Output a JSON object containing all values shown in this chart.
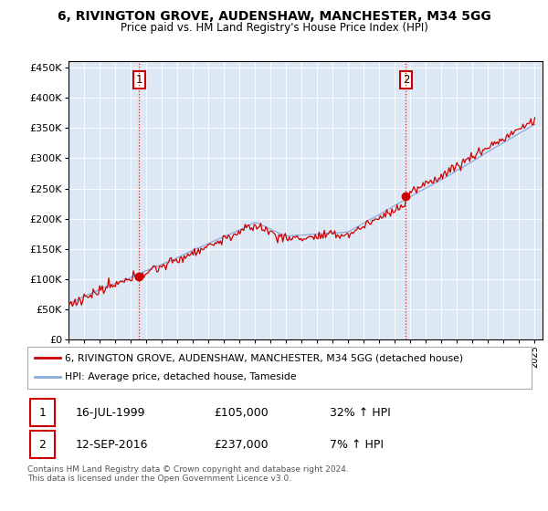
{
  "title": "6, RIVINGTON GROVE, AUDENSHAW, MANCHESTER, M34 5GG",
  "subtitle": "Price paid vs. HM Land Registry's House Price Index (HPI)",
  "hpi_label": "HPI: Average price, detached house, Tameside",
  "property_label": "6, RIVINGTON GROVE, AUDENSHAW, MANCHESTER, M34 5GG (detached house)",
  "sale1_date": "16-JUL-1999",
  "sale1_price": 105000,
  "sale1_hpi": "32% ↑ HPI",
  "sale2_date": "12-SEP-2016",
  "sale2_price": 237000,
  "sale2_hpi": "7% ↑ HPI",
  "footer": "Contains HM Land Registry data © Crown copyright and database right 2024.\nThis data is licensed under the Open Government Licence v3.0.",
  "ylim": [
    0,
    460000
  ],
  "hpi_color": "#88aadd",
  "price_color": "#cc0000",
  "sale1_year": 1999.54,
  "sale2_year": 2016.71,
  "background_color": "#ffffff",
  "chart_bg_color": "#dde8f5",
  "grid_color": "#ffffff"
}
